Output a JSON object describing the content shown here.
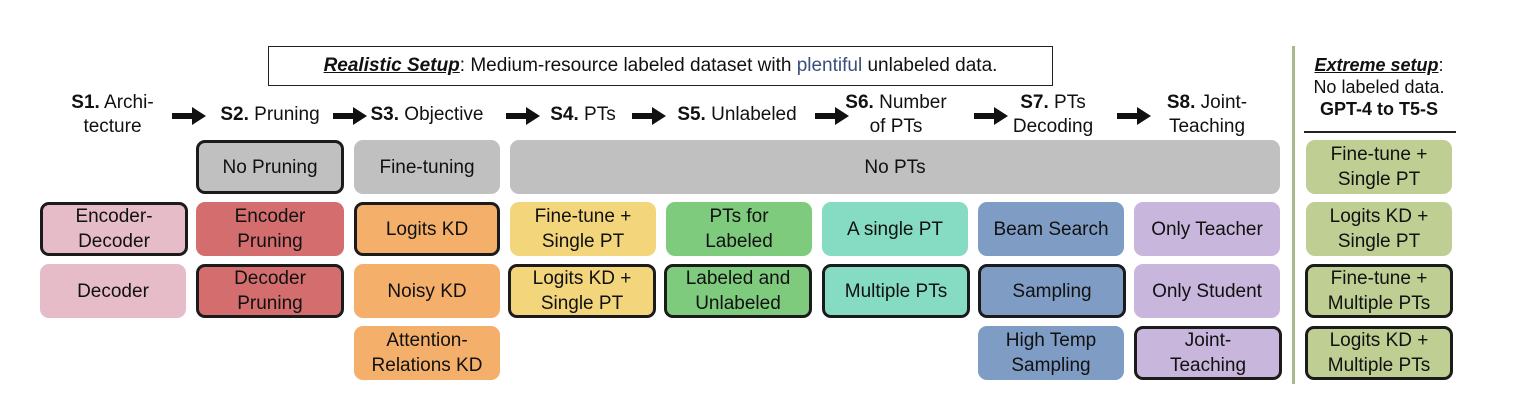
{
  "setup": {
    "title": "Realistic Setup",
    "colon": ":",
    "text_before": " Medium-resource labeled dataset with ",
    "highlight": "plentiful",
    "text_after": " unlabeled data."
  },
  "stages": [
    {
      "num": "S1.",
      "name": " Archi-",
      "line2": "tecture"
    },
    {
      "num": "S2.",
      "name": " Pruning",
      "line2": ""
    },
    {
      "num": "S3.",
      "name": " Objective",
      "line2": ""
    },
    {
      "num": "S4.",
      "name": " PTs",
      "line2": ""
    },
    {
      "num": "S5.",
      "name": " Unlabeled",
      "line2": ""
    },
    {
      "num": "S6.",
      "name": " Number",
      "line2": "of PTs"
    },
    {
      "num": "S7.",
      "name": " PTs",
      "line2": "Decoding"
    },
    {
      "num": "S8.",
      "name": " Joint-",
      "line2": "Teaching"
    }
  ],
  "options": {
    "pruning_default": "No Pruning",
    "objective_default": "Fine-tuning",
    "pts_default": "No PTs",
    "architecture": [
      {
        "l1": "Encoder-",
        "l2": "Decoder"
      },
      {
        "l1": "Decoder",
        "l2": ""
      }
    ],
    "pruning": [
      {
        "l1": "Encoder",
        "l2": "Pruning"
      },
      {
        "l1": "Decoder",
        "l2": "Pruning"
      }
    ],
    "objective": [
      {
        "l1": "Logits KD",
        "l2": ""
      },
      {
        "l1": "Noisy KD",
        "l2": ""
      },
      {
        "l1": "Attention-",
        "l2": "Relations KD"
      }
    ],
    "pts": [
      {
        "l1": "Fine-tune +",
        "l2": "Single PT"
      },
      {
        "l1": "Logits KD +",
        "l2": "Single PT"
      }
    ],
    "unlabeled": [
      {
        "l1": "PTs for",
        "l2": "Labeled"
      },
      {
        "l1": "Labeled and",
        "l2": "Unlabeled"
      }
    ],
    "number_of_pts": [
      {
        "l1": "A single PT",
        "l2": ""
      },
      {
        "l1": "Multiple PTs",
        "l2": ""
      }
    ],
    "decoding": [
      {
        "l1": "Beam Search",
        "l2": ""
      },
      {
        "l1": "Sampling",
        "l2": ""
      },
      {
        "l1": "High Temp",
        "l2": "Sampling"
      }
    ],
    "joint_teaching": [
      {
        "l1": "Only Teacher",
        "l2": ""
      },
      {
        "l1": "Only Student",
        "l2": ""
      },
      {
        "l1": "Joint-",
        "l2": "Teaching"
      }
    ]
  },
  "extreme": {
    "title": "Extreme setup",
    "colon": ":",
    "line2": "No labeled data.",
    "line3": "GPT-4 to T5-S",
    "items": [
      {
        "l1": "Fine-tune +",
        "l2": "Single PT"
      },
      {
        "l1": "Logits KD +",
        "l2": "Single PT"
      },
      {
        "l1": "Fine-tune +",
        "l2": "Multiple PTs"
      },
      {
        "l1": "Logits KD +",
        "l2": "Multiple PTs"
      }
    ]
  },
  "colors": {
    "gray": "#c0c0c0",
    "architecture": "#e6bcc9",
    "pruning": "#d46d6e",
    "objective": "#f4b06b",
    "pts": "#f3d57c",
    "unlabeled": "#7fcb7e",
    "number_of_pts": "#86dcc2",
    "decoding": "#7f9cc5",
    "joint_teaching": "#c8b6dc",
    "extreme": "#bfcf94",
    "divider": "#a8b98c"
  }
}
